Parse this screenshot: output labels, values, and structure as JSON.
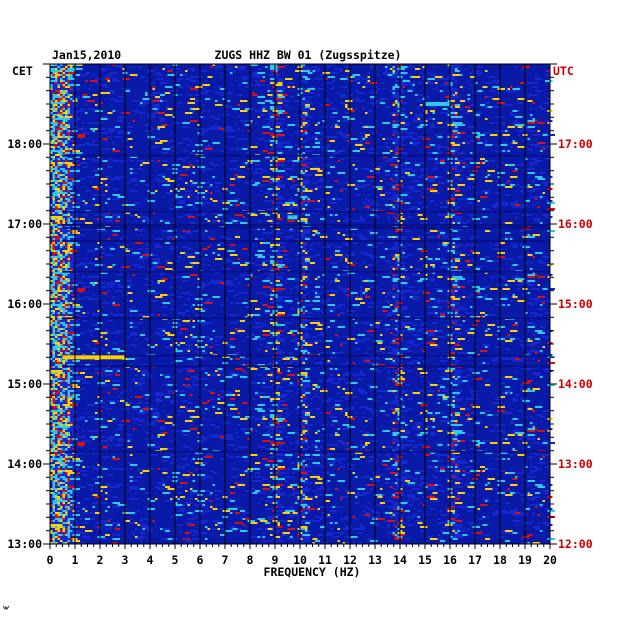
{
  "chart_data": {
    "type": "heatmap",
    "date": "Jan15,2010",
    "title": "ZUGS HHZ BW 01 (Zugsspitze)",
    "xlabel": "FREQUENCY (HZ)",
    "x_ticks": [
      "0",
      "1",
      "2",
      "3",
      "4",
      "5",
      "6",
      "7",
      "8",
      "9",
      "10",
      "11",
      "12",
      "13",
      "14",
      "15",
      "16",
      "17",
      "18",
      "19",
      "20"
    ],
    "xlim": [
      0,
      20
    ],
    "left_axis_label": "CET",
    "left_ticks": [
      "13:00",
      "14:00",
      "15:00",
      "16:00",
      "17:00",
      "18:00"
    ],
    "right_axis_label": "UTC",
    "right_ticks": [
      "12:00",
      "13:00",
      "14:00",
      "15:00",
      "16:00",
      "17:00"
    ],
    "time_range_cet": [
      "13:00",
      "19:00"
    ],
    "colors": {
      "background": "#0a1aa8",
      "low": "#1528d0",
      "mid": "#2ec8e8",
      "high": "#ffd000",
      "peak": "#d81010",
      "utc_label": "#d00000"
    },
    "persistent_bands_hz": [
      0.3,
      0.6,
      9.0,
      10.1,
      13.9,
      16.1
    ],
    "notable_events": [
      {
        "time_cet": "15:20",
        "freq_range_hz": [
          0.5,
          3.0
        ],
        "level": "high"
      },
      {
        "time_cet": "18:30",
        "freq_range_hz": [
          15.0,
          16.0
        ],
        "level": "mid"
      },
      {
        "time_cet": "17:05",
        "freq_range_hz": [
          9.5,
          9.9
        ],
        "level": "mid"
      }
    ]
  }
}
